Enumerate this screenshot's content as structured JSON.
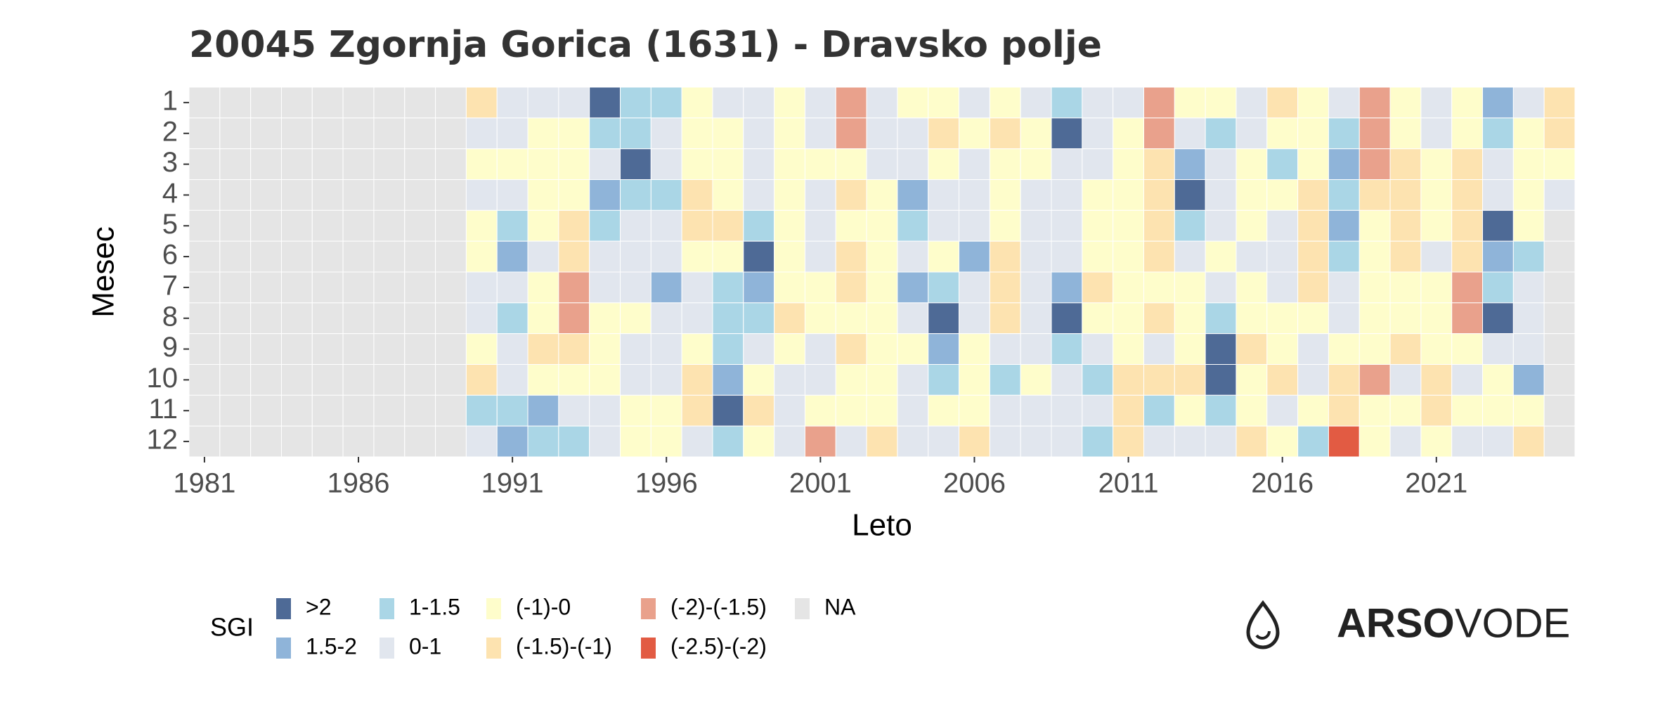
{
  "chart_data": {
    "type": "heatmap",
    "title": "20045 Zgornja Gorica (1631) - Dravsko polje",
    "x_label": "Leto",
    "y_label": "Mesec",
    "x": [
      1981,
      1982,
      1983,
      1984,
      1985,
      1986,
      1987,
      1988,
      1989,
      1990,
      1991,
      1992,
      1993,
      1994,
      1995,
      1996,
      1997,
      1998,
      1999,
      2000,
      2001,
      2002,
      2003,
      2004,
      2005,
      2006,
      2007,
      2008,
      2009,
      2010,
      2011,
      2012,
      2013,
      2014,
      2015,
      2016,
      2017,
      2018,
      2019,
      2020,
      2021,
      2022,
      2023,
      2024,
      2025
    ],
    "y": [
      1,
      2,
      3,
      4,
      5,
      6,
      7,
      8,
      9,
      10,
      11,
      12
    ],
    "xticks": [
      1981,
      1986,
      1991,
      1996,
      2001,
      2006,
      2011,
      2016,
      2021
    ],
    "legend": {
      "title": "SGI",
      "classes": [
        {
          "label": ">2",
          "color": "#4e6a96"
        },
        {
          "label": "1.5-2",
          "color": "#8fb4d9"
        },
        {
          "label": "1-1.5",
          "color": "#aad6e6"
        },
        {
          "label": "0-1",
          "color": "#e1e6ee"
        },
        {
          "label": "(-1)-0",
          "color": "#fefdcb"
        },
        {
          "label": "(-1.5)-(-1)",
          "color": "#fde3b0"
        },
        {
          "label": "(-2)-(-1.5)",
          "color": "#e9a18c"
        },
        {
          "label": "(-2.5)-(-2)",
          "color": "#e25b43"
        },
        {
          "label": "NA",
          "color": "#e5e5e5"
        }
      ]
    },
    "values": [
      [
        "NA",
        "NA",
        "NA",
        "NA",
        "NA",
        "NA",
        "NA",
        "NA",
        "NA",
        "(-1.5)-(-1)",
        "0-1",
        "0-1",
        "0-1",
        ">2",
        "1-1.5",
        "1-1.5",
        "(-1)-0",
        "0-1",
        "0-1",
        "(-1)-0",
        "0-1",
        "(-2)-(-1.5)",
        "0-1",
        "(-1)-0",
        "(-1)-0",
        "0-1",
        "(-1)-0",
        "0-1",
        "1-1.5",
        "0-1",
        "0-1",
        "(-2)-(-1.5)",
        "(-1)-0",
        "(-1)-0",
        "0-1",
        "(-1.5)-(-1)",
        "(-1)-0",
        "0-1",
        "(-2)-(-1.5)",
        "(-1)-0",
        "0-1",
        "(-1)-0",
        "1.5-2",
        "0-1",
        "(-1.5)-(-1)"
      ],
      [
        "NA",
        "NA",
        "NA",
        "NA",
        "NA",
        "NA",
        "NA",
        "NA",
        "NA",
        "0-1",
        "0-1",
        "(-1)-0",
        "(-1)-0",
        "1-1.5",
        "1-1.5",
        "0-1",
        "(-1)-0",
        "(-1)-0",
        "0-1",
        "(-1)-0",
        "0-1",
        "(-2)-(-1.5)",
        "0-1",
        "0-1",
        "(-1.5)-(-1)",
        "(-1)-0",
        "(-1.5)-(-1)",
        "(-1)-0",
        ">2",
        "0-1",
        "(-1)-0",
        "(-2)-(-1.5)",
        "0-1",
        "1-1.5",
        "0-1",
        "(-1)-0",
        "(-1)-0",
        "1-1.5",
        "(-2)-(-1.5)",
        "(-1)-0",
        "0-1",
        "(-1)-0",
        "1-1.5",
        "(-1)-0",
        "(-1.5)-(-1)"
      ],
      [
        "NA",
        "NA",
        "NA",
        "NA",
        "NA",
        "NA",
        "NA",
        "NA",
        "NA",
        "(-1)-0",
        "(-1)-0",
        "(-1)-0",
        "(-1)-0",
        "0-1",
        ">2",
        "0-1",
        "(-1)-0",
        "(-1)-0",
        "0-1",
        "(-1)-0",
        "(-1)-0",
        "(-1)-0",
        "0-1",
        "0-1",
        "(-1)-0",
        "0-1",
        "(-1)-0",
        "(-1)-0",
        "0-1",
        "0-1",
        "(-1)-0",
        "(-1.5)-(-1)",
        "1.5-2",
        "0-1",
        "(-1)-0",
        "1-1.5",
        "(-1)-0",
        "1.5-2",
        "(-2)-(-1.5)",
        "(-1.5)-(-1)",
        "(-1)-0",
        "(-1.5)-(-1)",
        "0-1",
        "(-1)-0",
        "(-1)-0"
      ],
      [
        "NA",
        "NA",
        "NA",
        "NA",
        "NA",
        "NA",
        "NA",
        "NA",
        "NA",
        "0-1",
        "0-1",
        "(-1)-0",
        "(-1)-0",
        "1.5-2",
        "1-1.5",
        "1-1.5",
        "(-1.5)-(-1)",
        "(-1)-0",
        "0-1",
        "(-1)-0",
        "0-1",
        "(-1.5)-(-1)",
        "(-1)-0",
        "1.5-2",
        "0-1",
        "0-1",
        "(-1)-0",
        "0-1",
        "0-1",
        "(-1)-0",
        "(-1)-0",
        "(-1.5)-(-1)",
        ">2",
        "0-1",
        "(-1)-0",
        "(-1)-0",
        "(-1.5)-(-1)",
        "1-1.5",
        "(-1.5)-(-1)",
        "(-1.5)-(-1)",
        "(-1)-0",
        "(-1.5)-(-1)",
        "0-1",
        "(-1)-0",
        "0-1"
      ],
      [
        "NA",
        "NA",
        "NA",
        "NA",
        "NA",
        "NA",
        "NA",
        "NA",
        "NA",
        "(-1)-0",
        "1-1.5",
        "(-1)-0",
        "(-1.5)-(-1)",
        "1-1.5",
        "0-1",
        "0-1",
        "(-1.5)-(-1)",
        "(-1.5)-(-1)",
        "1-1.5",
        "(-1)-0",
        "0-1",
        "(-1)-0",
        "(-1)-0",
        "1-1.5",
        "0-1",
        "0-1",
        "(-1)-0",
        "0-1",
        "0-1",
        "(-1)-0",
        "(-1)-0",
        "(-1.5)-(-1)",
        "1-1.5",
        "0-1",
        "(-1)-0",
        "0-1",
        "(-1.5)-(-1)",
        "1.5-2",
        "(-1)-0",
        "(-1.5)-(-1)",
        "(-1)-0",
        "(-1.5)-(-1)",
        ">2",
        "(-1)-0",
        "NA"
      ],
      [
        "NA",
        "NA",
        "NA",
        "NA",
        "NA",
        "NA",
        "NA",
        "NA",
        "NA",
        "(-1)-0",
        "1.5-2",
        "0-1",
        "(-1.5)-(-1)",
        "0-1",
        "0-1",
        "0-1",
        "(-1)-0",
        "(-1)-0",
        ">2",
        "(-1)-0",
        "0-1",
        "(-1.5)-(-1)",
        "(-1)-0",
        "0-1",
        "(-1)-0",
        "1.5-2",
        "(-1.5)-(-1)",
        "0-1",
        "0-1",
        "(-1)-0",
        "(-1)-0",
        "(-1.5)-(-1)",
        "0-1",
        "(-1)-0",
        "0-1",
        "0-1",
        "(-1.5)-(-1)",
        "1-1.5",
        "(-1)-0",
        "(-1.5)-(-1)",
        "0-1",
        "(-1.5)-(-1)",
        "1.5-2",
        "1-1.5",
        "NA"
      ],
      [
        "NA",
        "NA",
        "NA",
        "NA",
        "NA",
        "NA",
        "NA",
        "NA",
        "NA",
        "0-1",
        "0-1",
        "(-1)-0",
        "(-2)-(-1.5)",
        "0-1",
        "0-1",
        "1.5-2",
        "0-1",
        "1-1.5",
        "1.5-2",
        "(-1)-0",
        "(-1)-0",
        "(-1.5)-(-1)",
        "(-1)-0",
        "1.5-2",
        "1-1.5",
        "0-1",
        "(-1.5)-(-1)",
        "0-1",
        "1.5-2",
        "(-1.5)-(-1)",
        "(-1)-0",
        "(-1)-0",
        "(-1)-0",
        "0-1",
        "(-1)-0",
        "0-1",
        "(-1.5)-(-1)",
        "0-1",
        "(-1)-0",
        "(-1)-0",
        "(-1)-0",
        "(-2)-(-1.5)",
        "1-1.5",
        "0-1",
        "NA"
      ],
      [
        "NA",
        "NA",
        "NA",
        "NA",
        "NA",
        "NA",
        "NA",
        "NA",
        "NA",
        "0-1",
        "1-1.5",
        "(-1)-0",
        "(-2)-(-1.5)",
        "(-1)-0",
        "(-1)-0",
        "0-1",
        "0-1",
        "1-1.5",
        "1-1.5",
        "(-1.5)-(-1)",
        "(-1)-0",
        "(-1)-0",
        "(-1)-0",
        "0-1",
        ">2",
        "0-1",
        "(-1.5)-(-1)",
        "0-1",
        ">2",
        "(-1)-0",
        "(-1)-0",
        "(-1.5)-(-1)",
        "(-1)-0",
        "1-1.5",
        "(-1)-0",
        "(-1)-0",
        "(-1)-0",
        "0-1",
        "(-1)-0",
        "(-1)-0",
        "(-1)-0",
        "(-2)-(-1.5)",
        ">2",
        "0-1",
        "NA"
      ],
      [
        "NA",
        "NA",
        "NA",
        "NA",
        "NA",
        "NA",
        "NA",
        "NA",
        "NA",
        "(-1)-0",
        "0-1",
        "(-1.5)-(-1)",
        "(-1.5)-(-1)",
        "(-1)-0",
        "0-1",
        "0-1",
        "(-1)-0",
        "1-1.5",
        "0-1",
        "(-1)-0",
        "0-1",
        "(-1.5)-(-1)",
        "(-1)-0",
        "(-1)-0",
        "1.5-2",
        "(-1)-0",
        "0-1",
        "0-1",
        "1-1.5",
        "0-1",
        "(-1)-0",
        "0-1",
        "(-1)-0",
        ">2",
        "(-1.5)-(-1)",
        "(-1)-0",
        "0-1",
        "(-1)-0",
        "(-1)-0",
        "(-1.5)-(-1)",
        "(-1)-0",
        "(-1)-0",
        "0-1",
        "0-1",
        "NA"
      ],
      [
        "NA",
        "NA",
        "NA",
        "NA",
        "NA",
        "NA",
        "NA",
        "NA",
        "NA",
        "(-1.5)-(-1)",
        "0-1",
        "(-1)-0",
        "(-1)-0",
        "(-1)-0",
        "0-1",
        "0-1",
        "(-1.5)-(-1)",
        "1.5-2",
        "(-1)-0",
        "0-1",
        "0-1",
        "(-1)-0",
        "(-1)-0",
        "0-1",
        "1-1.5",
        "(-1)-0",
        "1-1.5",
        "(-1)-0",
        "0-1",
        "1-1.5",
        "(-1.5)-(-1)",
        "(-1.5)-(-1)",
        "(-1.5)-(-1)",
        ">2",
        "(-1)-0",
        "(-1.5)-(-1)",
        "0-1",
        "(-1.5)-(-1)",
        "(-2)-(-1.5)",
        "0-1",
        "(-1.5)-(-1)",
        "0-1",
        "(-1)-0",
        "1.5-2",
        "NA"
      ],
      [
        "NA",
        "NA",
        "NA",
        "NA",
        "NA",
        "NA",
        "NA",
        "NA",
        "NA",
        "1-1.5",
        "1-1.5",
        "1.5-2",
        "0-1",
        "0-1",
        "(-1)-0",
        "(-1)-0",
        "(-1.5)-(-1)",
        ">2",
        "(-1.5)-(-1)",
        "0-1",
        "(-1)-0",
        "(-1)-0",
        "(-1)-0",
        "0-1",
        "(-1)-0",
        "(-1)-0",
        "0-1",
        "0-1",
        "0-1",
        "0-1",
        "(-1.5)-(-1)",
        "1-1.5",
        "(-1)-0",
        "1-1.5",
        "(-1)-0",
        "0-1",
        "(-1)-0",
        "(-1.5)-(-1)",
        "(-1)-0",
        "(-1)-0",
        "(-1.5)-(-1)",
        "(-1)-0",
        "(-1)-0",
        "(-1)-0",
        "NA"
      ],
      [
        "NA",
        "NA",
        "NA",
        "NA",
        "NA",
        "NA",
        "NA",
        "NA",
        "NA",
        "0-1",
        "1.5-2",
        "1-1.5",
        "1-1.5",
        "0-1",
        "(-1)-0",
        "(-1)-0",
        "0-1",
        "1-1.5",
        "(-1)-0",
        "0-1",
        "(-2)-(-1.5)",
        "0-1",
        "(-1.5)-(-1)",
        "0-1",
        "0-1",
        "(-1.5)-(-1)",
        "0-1",
        "0-1",
        "0-1",
        "1-1.5",
        "(-1.5)-(-1)",
        "0-1",
        "0-1",
        "0-1",
        "(-1.5)-(-1)",
        "(-1)-0",
        "1-1.5",
        "(-2.5)-(-2)",
        "(-1)-0",
        "0-1",
        "(-1)-0",
        "0-1",
        "0-1",
        "(-1.5)-(-1)",
        "NA"
      ]
    ],
    "logo": {
      "bold": "ARSO",
      "light": "VODE"
    }
  }
}
